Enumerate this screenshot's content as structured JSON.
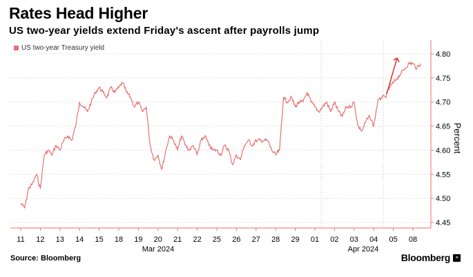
{
  "header": {
    "title": "Rates Head Higher",
    "subtitle": "US two-year yields extend Friday's ascent after payrolls jump"
  },
  "footer": {
    "source": "Source: Bloomberg",
    "brand": "Bloomberg",
    "brand_badge": "≡"
  },
  "chart_data": {
    "type": "line",
    "title": "Rates Head Higher",
    "ylabel": "Percent",
    "xlabel": "",
    "ylim": [
      4.45,
      4.8
    ],
    "yticks": [
      "4.45",
      "4.50",
      "4.55",
      "4.60",
      "4.65",
      "4.70",
      "4.75",
      "4.80"
    ],
    "xticks": [
      "11",
      "12",
      "13",
      "14",
      "15",
      "18",
      "19",
      "20",
      "21",
      "22",
      "25",
      "26",
      "27",
      "28",
      "29",
      "01",
      "02",
      "03",
      "04",
      "05",
      "08"
    ],
    "month_labels": [
      "Mar 2024",
      "Apr 2024"
    ],
    "legend": [
      "US two-year Treasury yield"
    ],
    "color": "#e8706d",
    "annotation": "arrow-up",
    "series": [
      {
        "name": "US two-year Treasury yield",
        "x": [
          0,
          0.2,
          0.4,
          0.6,
          0.8,
          1.0,
          1.2,
          1.4,
          1.6,
          1.8,
          2.0,
          2.2,
          2.4,
          2.6,
          2.8,
          3.0,
          3.2,
          3.4,
          3.6,
          3.8,
          4.0,
          4.2,
          4.4,
          4.6,
          4.8,
          5.0,
          5.2,
          5.4,
          5.6,
          5.8,
          6.0,
          6.2,
          6.4,
          6.6,
          6.8,
          7.0,
          7.2,
          7.4,
          7.6,
          7.8,
          8.0,
          8.2,
          8.4,
          8.6,
          8.8,
          9.0,
          9.2,
          9.4,
          9.6,
          9.8,
          10.0,
          10.2,
          10.4,
          10.6,
          10.8,
          11.0,
          11.2,
          11.4,
          11.6,
          11.8,
          12.0,
          12.2,
          12.4,
          12.6,
          12.8,
          13.0,
          13.2,
          13.4,
          13.6,
          13.8,
          14.0,
          14.2,
          14.4,
          14.6,
          14.8,
          15.0,
          15.2,
          15.4,
          15.6,
          15.8,
          16.0,
          16.2,
          16.4,
          16.6,
          16.8,
          17.0,
          17.2,
          17.4,
          17.6,
          17.8,
          18.0,
          18.2,
          18.4,
          18.6,
          18.8,
          19.0,
          19.2,
          19.4,
          19.6,
          19.8,
          20.0,
          20.2,
          20.4
        ],
        "values": [
          4.49,
          4.48,
          4.52,
          4.53,
          4.55,
          4.52,
          4.59,
          4.6,
          4.59,
          4.61,
          4.6,
          4.62,
          4.63,
          4.62,
          4.65,
          4.7,
          4.69,
          4.68,
          4.7,
          4.72,
          4.73,
          4.72,
          4.71,
          4.73,
          4.72,
          4.73,
          4.74,
          4.72,
          4.71,
          4.69,
          4.7,
          4.68,
          4.69,
          4.61,
          4.58,
          4.59,
          4.56,
          4.6,
          4.63,
          4.62,
          4.6,
          4.63,
          4.61,
          4.6,
          4.61,
          4.59,
          4.62,
          4.63,
          4.61,
          4.6,
          4.6,
          4.59,
          4.61,
          4.6,
          4.57,
          4.59,
          4.58,
          4.61,
          4.62,
          4.61,
          4.62,
          4.62,
          4.62,
          4.62,
          4.6,
          4.59,
          4.6,
          4.71,
          4.7,
          4.71,
          4.69,
          4.7,
          4.7,
          4.72,
          4.7,
          4.69,
          4.68,
          4.69,
          4.7,
          4.68,
          4.7,
          4.68,
          4.67,
          4.69,
          4.69,
          4.7,
          4.65,
          4.64,
          4.66,
          4.67,
          4.65,
          4.7,
          4.71,
          4.71,
          4.73,
          4.74,
          4.75,
          4.76,
          4.77,
          4.78,
          4.78,
          4.77,
          4.78
        ]
      }
    ]
  }
}
